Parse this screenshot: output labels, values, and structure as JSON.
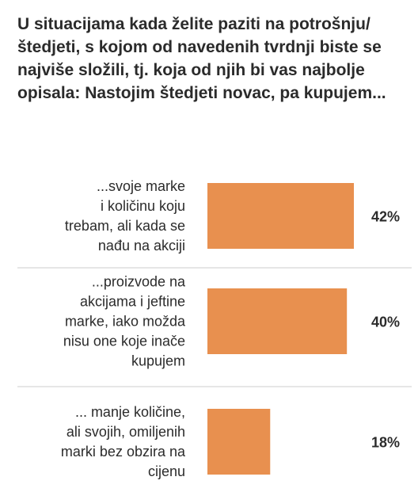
{
  "chart_data": {
    "type": "bar",
    "orientation": "horizontal",
    "title": "U situacijama kada želite paziti na potrošnju/štedjeti, s kojom od navedenih tvrdnji biste se najviše složili, tj. koja od njih bi vas najbolje opisala: Nastojim štedjeti novac, pa kupujem...",
    "categories": [
      [
        "...svoje marke",
        "i količinu koju",
        "trebam, ali kada se",
        "nađu na akciji"
      ],
      [
        "...proizvode na",
        "akcijama i jeftine",
        "marke, iako možda",
        "nisu one koje inače",
        "kupujem"
      ],
      [
        "... manje količine,",
        "ali svojih, omiljenih",
        "marki bez obzira na",
        "cijenu"
      ]
    ],
    "values": [
      42,
      40,
      18
    ],
    "value_labels": [
      "42%",
      "40%",
      "18%"
    ],
    "bar_color": "#e8904f",
    "divider_color": "#cccccc",
    "grid": false,
    "legend": "none"
  }
}
